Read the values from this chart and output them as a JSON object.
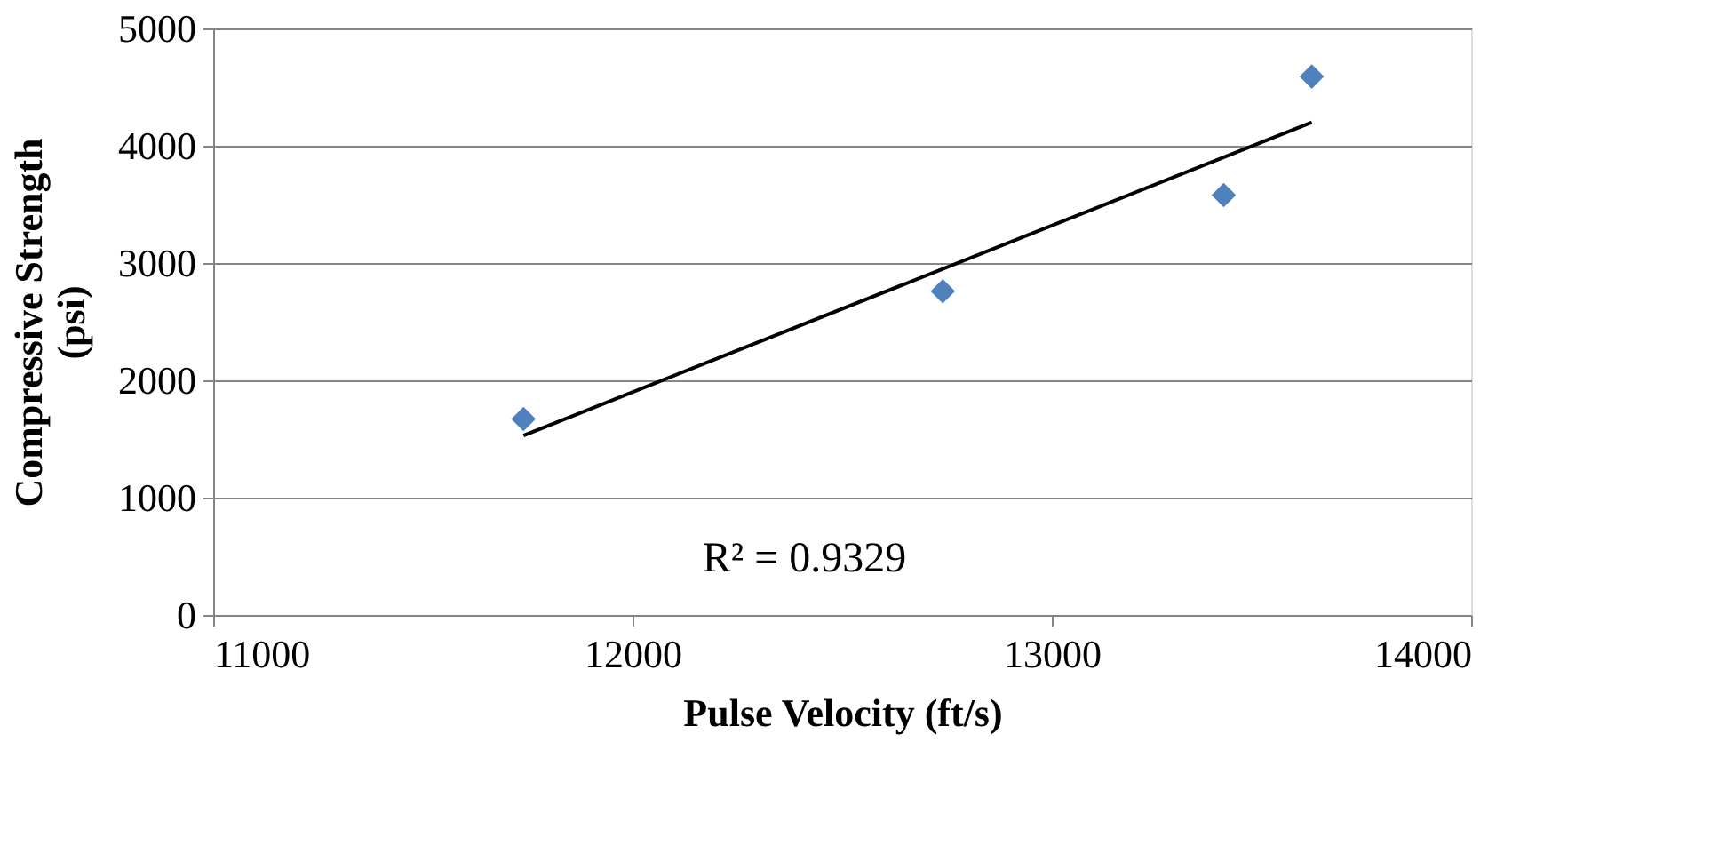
{
  "chart_data": {
    "type": "scatter",
    "xlabel": "Pulse Velocity (ft/s)",
    "ylabel": "Compressive Strength (psi)",
    "xlim": [
      11000,
      14000
    ],
    "xticks": [
      11000,
      12000,
      13000,
      14000
    ],
    "ylim": [
      0,
      5000
    ],
    "yticks": [
      0,
      1000,
      2000,
      3000,
      4000,
      5000
    ],
    "grid": "y",
    "legend": false,
    "marker": "diamond",
    "series": [
      {
        "color": "#4f81bd",
        "x": [
          11740,
          12740,
          13410,
          13620
        ],
        "values": [
          1670,
          2760,
          3580,
          4590
        ]
      },
      {
        "type": "line",
        "color": "#000000",
        "marker": "none",
        "x": [
          11740,
          13620
        ],
        "values": [
          1530,
          4200
        ]
      }
    ],
    "annotations": [
      "R² = 0.9329"
    ]
  }
}
